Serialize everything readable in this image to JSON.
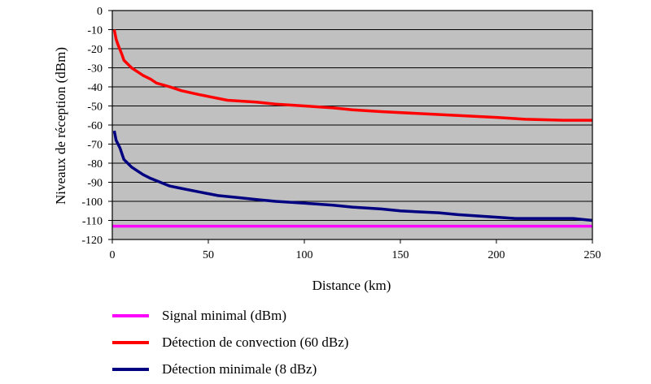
{
  "chart_data": {
    "type": "line",
    "title": "",
    "xlabel": "Distance (km)",
    "ylabel": "Niveaux de réception (dBm)",
    "xlim": [
      0,
      250
    ],
    "ylim": [
      -120,
      0
    ],
    "x_ticks": [
      "0",
      "50",
      "100",
      "150",
      "200",
      "250"
    ],
    "y_ticks": [
      "0",
      "-10",
      "-20",
      "-30",
      "-40",
      "-50",
      "-60",
      "-70",
      "-80",
      "-90",
      "-100",
      "-110",
      "-120"
    ],
    "grid": true,
    "plot_background": "#c0c0c0",
    "legend_position": "bottom",
    "series": [
      {
        "name": "Signal minimal (dBm)",
        "color": "#ff00ff",
        "points": [
          [
            0,
            -113
          ],
          [
            250,
            -113
          ]
        ]
      },
      {
        "name": "Détection de convection (60 dBz)",
        "color": "#ff0000",
        "points": [
          [
            1,
            -10
          ],
          [
            2,
            -15
          ],
          [
            3,
            -18
          ],
          [
            5,
            -23
          ],
          [
            6,
            -26
          ],
          [
            8,
            -28
          ],
          [
            10,
            -30
          ],
          [
            13,
            -32
          ],
          [
            16,
            -34
          ],
          [
            20,
            -36
          ],
          [
            23,
            -38
          ],
          [
            30,
            -40
          ],
          [
            36,
            -42
          ],
          [
            45,
            -44
          ],
          [
            50,
            -45
          ],
          [
            60,
            -47
          ],
          [
            75,
            -48
          ],
          [
            85,
            -49
          ],
          [
            100,
            -50
          ],
          [
            115,
            -51
          ],
          [
            125,
            -52
          ],
          [
            140,
            -53
          ],
          [
            160,
            -54
          ],
          [
            180,
            -55
          ],
          [
            200,
            -56
          ],
          [
            215,
            -57
          ],
          [
            235,
            -57.5
          ],
          [
            250,
            -57.5
          ]
        ]
      },
      {
        "name": "Détection minimale (8 dBz)",
        "color": "#000080",
        "points": [
          [
            1,
            -63
          ],
          [
            2,
            -68
          ],
          [
            4,
            -72
          ],
          [
            6,
            -78
          ],
          [
            8,
            -80
          ],
          [
            10,
            -82
          ],
          [
            13,
            -84
          ],
          [
            16,
            -86
          ],
          [
            20,
            -88
          ],
          [
            25,
            -90
          ],
          [
            30,
            -92
          ],
          [
            35,
            -93
          ],
          [
            45,
            -95
          ],
          [
            55,
            -97
          ],
          [
            65,
            -98
          ],
          [
            75,
            -99
          ],
          [
            85,
            -100
          ],
          [
            100,
            -101
          ],
          [
            115,
            -102
          ],
          [
            125,
            -103
          ],
          [
            140,
            -104
          ],
          [
            150,
            -105
          ],
          [
            170,
            -106
          ],
          [
            180,
            -107
          ],
          [
            195,
            -108
          ],
          [
            210,
            -109
          ],
          [
            240,
            -109
          ],
          [
            250,
            -110
          ]
        ]
      }
    ]
  }
}
